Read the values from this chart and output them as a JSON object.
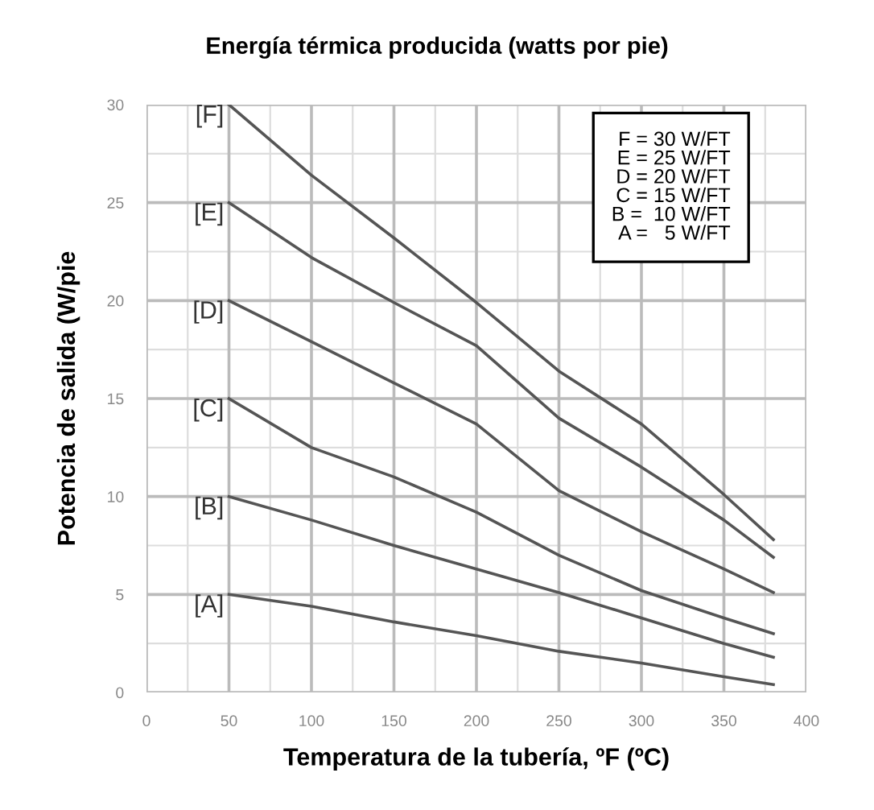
{
  "chart_data": {
    "type": "line",
    "title": "Energía térmica producida (watts por pie)",
    "xlabel": "Temperatura de la tubería, ºF (ºC)",
    "ylabel": "Potencia de salida (W/pie",
    "xlim": [
      0,
      400
    ],
    "ylim": [
      0,
      30
    ],
    "xticks": [
      0,
      50,
      100,
      150,
      200,
      250,
      300,
      350,
      400
    ],
    "yticks": [
      0,
      5,
      10,
      15,
      20,
      25,
      30
    ],
    "grid": true,
    "legend": false,
    "marker": "none",
    "line_style": "solid",
    "x": [
      50,
      100,
      150,
      200,
      250,
      300,
      350,
      380
    ],
    "series": [
      {
        "name": "[F]",
        "color": "#555555",
        "values": [
          30,
          26.4,
          23.2,
          19.9,
          16.4,
          13.7,
          10.1,
          7.8
        ]
      },
      {
        "name": "[E]",
        "color": "#555555",
        "values": [
          25,
          22.2,
          19.9,
          17.7,
          14.0,
          11.5,
          8.8,
          6.9
        ]
      },
      {
        "name": "[D]",
        "color": "#555555",
        "values": [
          20,
          17.9,
          15.8,
          13.7,
          10.3,
          8.2,
          6.3,
          5.1
        ]
      },
      {
        "name": "[C]",
        "color": "#555555",
        "values": [
          15,
          12.5,
          11.0,
          9.2,
          7.0,
          5.2,
          3.8,
          3.0
        ]
      },
      {
        "name": "[B]",
        "color": "#555555",
        "values": [
          10,
          8.8,
          7.5,
          6.3,
          5.1,
          3.8,
          2.5,
          1.8
        ]
      },
      {
        "name": "[A]",
        "color": "#555555",
        "values": [
          5,
          4.4,
          3.6,
          2.9,
          2.1,
          1.5,
          0.8,
          0.4
        ]
      }
    ],
    "annotations": [
      "F = 30 W/FT\nE = 25 W/FT\nD = 20 W/FT\nC = 15 W/FT\nB =  10 W/FT\nA =   5 W/FT"
    ]
  }
}
